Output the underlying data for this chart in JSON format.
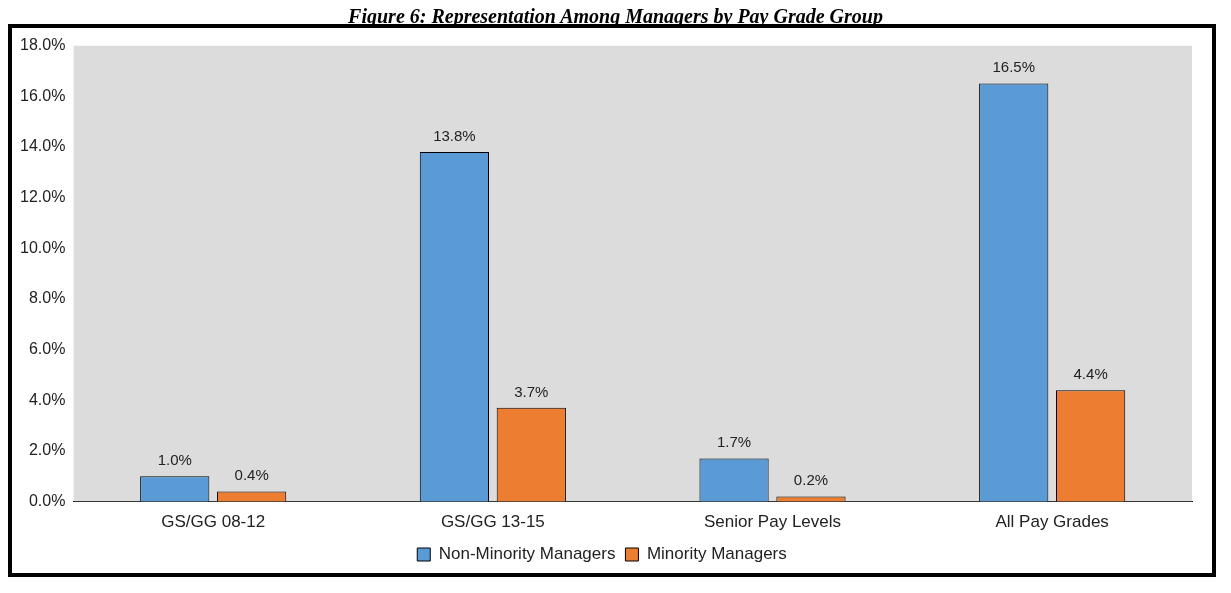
{
  "chart_data": {
    "type": "bar",
    "title": "Figure 6: Representation Among Managers by Pay Grade Group",
    "categories": [
      "GS/GG 08-12",
      "GS/GG 13-15",
      "Senior Pay Levels",
      "All Pay Grades"
    ],
    "series": [
      {
        "name": "Non-Minority Managers",
        "color": "#5b9bd5",
        "values": [
          1.0,
          13.8,
          1.7,
          16.5
        ]
      },
      {
        "name": "Minority Managers",
        "color": "#ed7d31",
        "values": [
          0.4,
          3.7,
          0.2,
          4.4
        ]
      }
    ],
    "ylim": [
      0,
      18
    ],
    "yticks": [
      {
        "value": 0,
        "label": "0.0%"
      },
      {
        "value": 2,
        "label": "2.0%"
      },
      {
        "value": 4,
        "label": "4.0%"
      },
      {
        "value": 6,
        "label": "6.0%"
      },
      {
        "value": 8,
        "label": "8.0%"
      },
      {
        "value": 10,
        "label": "10.0%"
      },
      {
        "value": 12,
        "label": "12.0%"
      },
      {
        "value": 14,
        "label": "14.0%"
      },
      {
        "value": 16,
        "label": "16.0%"
      },
      {
        "value": 18,
        "label": "18.0%"
      }
    ],
    "value_labels": [
      [
        "1.0%",
        "13.8%",
        "1.7%",
        "16.5%"
      ],
      [
        "0.4%",
        "3.7%",
        "0.2%",
        "4.4%"
      ]
    ],
    "grid": false,
    "legend": "bottom"
  }
}
